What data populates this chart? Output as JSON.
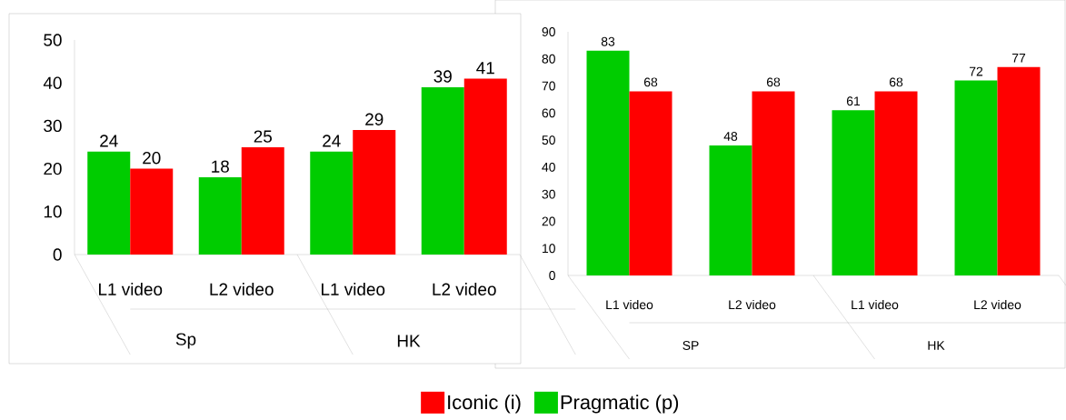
{
  "chart_data": [
    {
      "type": "bar",
      "categories": [
        "L1 video",
        "L2 video",
        "L1 video",
        "L2 video"
      ],
      "annotations": [
        "Sp",
        "HK"
      ],
      "series": [
        {
          "name": "Pragmatic (p)",
          "color": "#00cc00",
          "values": [
            24,
            18,
            24,
            39
          ]
        },
        {
          "name": "Iconic (i)",
          "color": "#ff0000",
          "values": [
            20,
            25,
            29,
            41
          ]
        }
      ],
      "ylim": [
        0,
        50
      ],
      "yticks": [
        0,
        10,
        20,
        30,
        40,
        50
      ],
      "data_labels": true,
      "legend": "bottom"
    },
    {
      "type": "bar",
      "categories": [
        "L1 video",
        "L2 video",
        "L1 video",
        "L2 video"
      ],
      "annotations": [
        "SP",
        "HK"
      ],
      "series": [
        {
          "color": "#00cc00",
          "values": [
            83,
            48,
            61,
            72
          ]
        },
        {
          "color": "#ff0000",
          "values": [
            68,
            68,
            68,
            77
          ]
        }
      ],
      "ylim": [
        0,
        90
      ],
      "yticks": [
        0,
        10,
        20,
        30,
        40,
        50,
        60,
        70,
        80,
        90
      ],
      "data_labels": true
    }
  ]
}
